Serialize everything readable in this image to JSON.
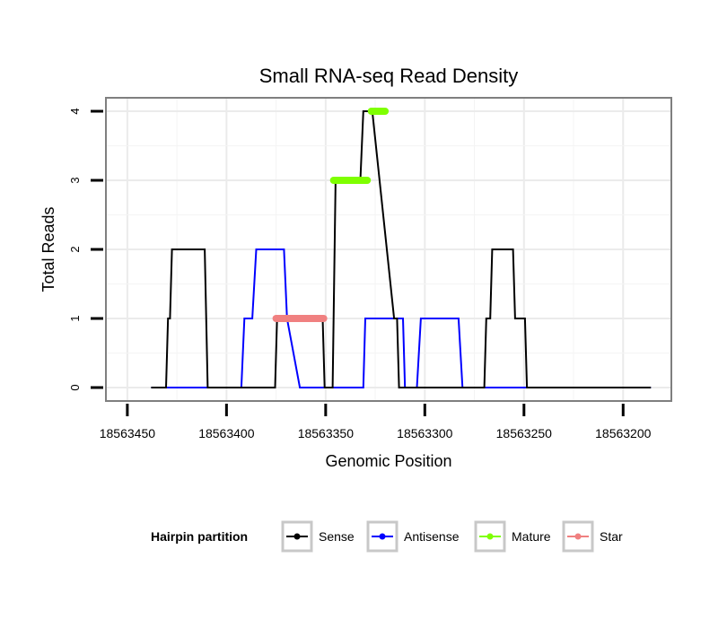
{
  "chart_data": {
    "type": "line",
    "title": "Small RNA-seq Read Density",
    "xlabel": "Genomic Position",
    "ylabel": "Total Reads",
    "xlim": [
      18563459,
      18563187
    ],
    "ylim": [
      -0.2,
      4.2
    ],
    "x_reversed": true,
    "grid": true,
    "x_ticks": [
      18563450,
      18563400,
      18563350,
      18563300,
      18563250,
      18563200
    ],
    "x_tick_labels": [
      "18563450",
      "18563400",
      "18563350",
      "18563300",
      "18563250",
      "18563200"
    ],
    "y_ticks": [
      0,
      1,
      2,
      3,
      4
    ],
    "y_tick_labels": [
      "0",
      "1",
      "2",
      "3",
      "4"
    ],
    "legend": {
      "title": "Hairpin partition",
      "position": "bottom",
      "entries": [
        {
          "name": "Sense",
          "color": "#000000"
        },
        {
          "name": "Antisense",
          "color": "#0000ff"
        },
        {
          "name": "Mature",
          "color": "#7fff00"
        },
        {
          "name": "Star",
          "color": "#f08080"
        }
      ]
    },
    "series": [
      {
        "name": "Antisense",
        "color": "#0000ff",
        "x": [
          18563438,
          18563392.5,
          18563391,
          18563387,
          18563385,
          18563371,
          18563369.5,
          18563363,
          18563351.5,
          18563350,
          18563347,
          18563331,
          18563330,
          18563311,
          18563310,
          18563304,
          18563302,
          18563283,
          18563281,
          18563186
        ],
        "y": [
          0,
          0,
          1,
          1,
          2,
          2,
          1,
          0,
          0,
          0,
          0,
          0,
          1,
          1,
          0,
          0,
          1,
          1,
          0,
          0
        ]
      },
      {
        "name": "Sense",
        "color": "#000000",
        "x": [
          18563438,
          18563430.5,
          18563429.5,
          18563428.5,
          18563427.5,
          18563411,
          18563409.5,
          18563392,
          18563375.5,
          18563374.5,
          18563373.5,
          18563351.5,
          18563350.5,
          18563346.5,
          18563345,
          18563332.5,
          18563331,
          18563327.5,
          18563326.5,
          18563315.5,
          18563314,
          18563313,
          18563309,
          18563270,
          18563269,
          18563267,
          18563266,
          18563258,
          18563255.5,
          18563254.5,
          18563249.5,
          18563248.5,
          18563186
        ],
        "y": [
          0,
          0,
          1,
          1,
          2,
          2,
          0,
          0,
          0,
          1,
          1,
          1,
          0,
          0,
          3,
          3,
          4,
          4,
          4,
          1,
          1,
          0,
          0,
          0,
          1,
          1,
          2,
          2,
          2,
          1,
          1,
          0,
          0
        ]
      },
      {
        "name": "Star",
        "color": "#f08080",
        "x": [
          18563375,
          18563351
        ],
        "y": [
          1,
          1
        ]
      },
      {
        "name": "Mature",
        "color": "#7fff00",
        "x": [
          18563346,
          18563329
        ],
        "y": [
          3,
          3
        ]
      },
      {
        "name": "Mature",
        "color": "#7fff00",
        "x": [
          18563327,
          18563320
        ],
        "y": [
          4,
          4
        ]
      }
    ]
  }
}
